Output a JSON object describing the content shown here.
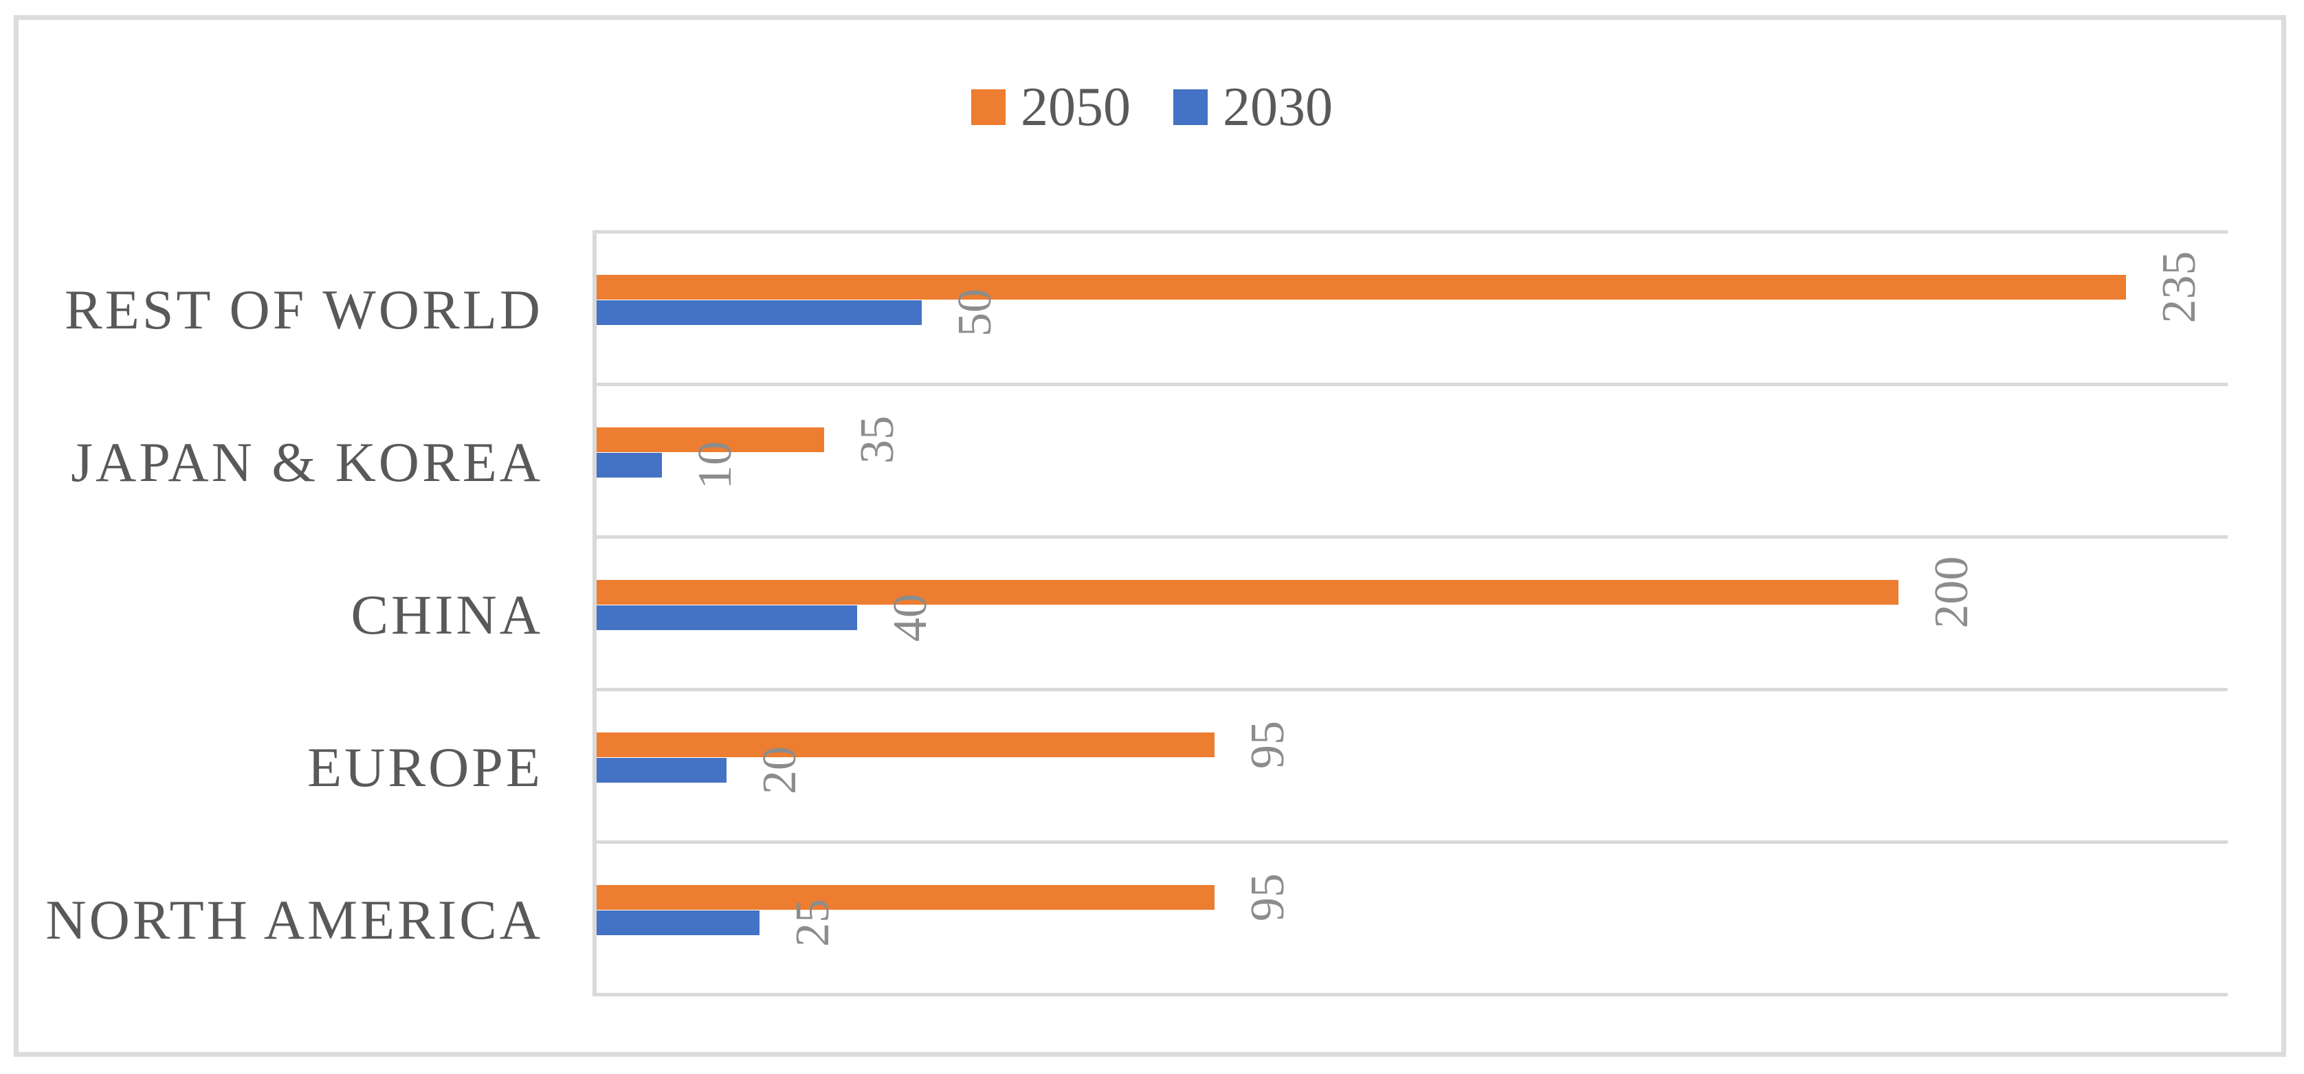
{
  "figure": {
    "background_color": "#ffffff",
    "frame_border_color": "#dcdcdc"
  },
  "legend": {
    "position": "top-center",
    "items": [
      {
        "label": "2050",
        "color": "#ED7D31"
      },
      {
        "label": "2030",
        "color": "#4472C4"
      }
    ]
  },
  "chart_data": {
    "type": "bar",
    "orientation": "horizontal",
    "title": "",
    "xlabel": "",
    "ylabel": "",
    "categories": [
      "REST OF WORLD",
      "JAPAN & KOREA",
      "CHINA",
      "EUROPE",
      "NORTH AMERICA"
    ],
    "series": [
      {
        "name": "2050",
        "color": "#ED7D31",
        "values": [
          235,
          35,
          200,
          95,
          95
        ]
      },
      {
        "name": "2030",
        "color": "#4472C4",
        "values": [
          50,
          10,
          40,
          20,
          25
        ]
      }
    ],
    "data_labels_visible": true,
    "data_label_rotation_deg": -90,
    "data_label_color": "#8c8c8c",
    "category_label_color": "#595959",
    "xlim": [
      0,
      250
    ],
    "axis_tick_labels_visible": false,
    "gridlines": "category-separators",
    "gridline_color": "#d9d9d9",
    "legend_position": "top"
  }
}
